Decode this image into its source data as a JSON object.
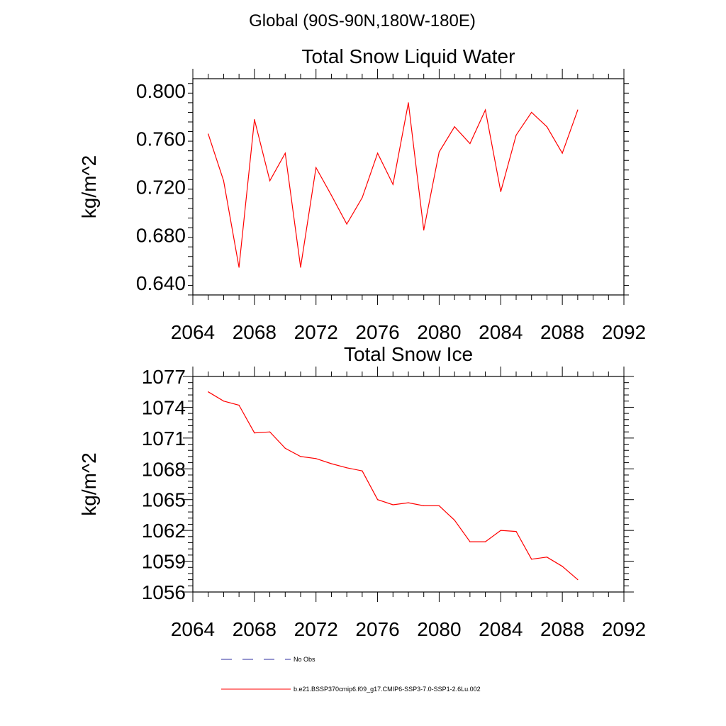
{
  "suptitle": "Global (90S-90N,180W-180E)",
  "colors": {
    "series": "#ff0000",
    "obs": "#2c2ca0",
    "axes": "#000000"
  },
  "chart_data": [
    {
      "type": "line",
      "title": "Total Snow Liquid Water",
      "xlabel": "",
      "ylabel": "kg/m^2",
      "xlim": [
        2064,
        2092
      ],
      "ylim": [
        0.63,
        0.81
      ],
      "xticks": [
        2064,
        2068,
        2072,
        2076,
        2080,
        2084,
        2088,
        2092
      ],
      "xtick_labels": [
        "2064",
        "2068",
        "2072",
        "2076",
        "2080",
        "2084",
        "2088",
        "2092"
      ],
      "yticks": [
        0.64,
        0.68,
        0.72,
        0.76,
        0.8
      ],
      "ytick_labels": [
        "0.640",
        "0.680",
        "0.720",
        "0.760",
        "0.800"
      ],
      "x": [
        2065,
        2066,
        2067,
        2068,
        2069,
        2070,
        2071,
        2072,
        2073,
        2074,
        2075,
        2076,
        2077,
        2078,
        2079,
        2080,
        2081,
        2082,
        2083,
        2084,
        2085,
        2086,
        2087,
        2088,
        2089
      ],
      "series": [
        {
          "name": "b.e21.BSSP370cmip6.f09_g17.CMIP6-SSP3-7.0-SSP1-2.6Lu.002",
          "values": [
            0.764,
            0.725,
            0.653,
            0.776,
            0.725,
            0.748,
            0.653,
            0.736,
            0.713,
            0.689,
            0.711,
            0.748,
            0.722,
            0.79,
            0.684,
            0.749,
            0.77,
            0.756,
            0.784,
            0.716,
            0.763,
            0.782,
            0.77,
            0.748,
            0.784
          ]
        }
      ]
    },
    {
      "type": "line",
      "title": "Total Snow Ice",
      "xlabel": "",
      "ylabel": "kg/m^2",
      "xlim": [
        2064,
        2092
      ],
      "ylim": [
        1056,
        1077
      ],
      "xticks": [
        2064,
        2068,
        2072,
        2076,
        2080,
        2084,
        2088,
        2092
      ],
      "xtick_labels": [
        "2064",
        "2068",
        "2072",
        "2076",
        "2080",
        "2084",
        "2088",
        "2092"
      ],
      "yticks": [
        1056,
        1059,
        1062,
        1065,
        1068,
        1071,
        1074,
        1077
      ],
      "ytick_labels": [
        "1056",
        "1059",
        "1062",
        "1065",
        "1068",
        "1071",
        "1074",
        "1077"
      ],
      "x": [
        2065,
        2066,
        2067,
        2068,
        2069,
        2070,
        2071,
        2072,
        2073,
        2074,
        2075,
        2076,
        2077,
        2078,
        2079,
        2080,
        2081,
        2082,
        2083,
        2084,
        2085,
        2086,
        2087,
        2088,
        2089
      ],
      "series": [
        {
          "name": "b.e21.BSSP370cmip6.f09_g17.CMIP6-SSP3-7.0-SSP1-2.6Lu.002",
          "values": [
            1075.5,
            1074.6,
            1074.2,
            1071.5,
            1071.6,
            1070.0,
            1069.2,
            1069.0,
            1068.5,
            1068.1,
            1067.8,
            1065.0,
            1064.5,
            1064.7,
            1064.4,
            1064.4,
            1063.0,
            1060.9,
            1060.9,
            1062.0,
            1061.9,
            1059.2,
            1059.4,
            1058.5,
            1057.2
          ]
        }
      ]
    }
  ],
  "legend": [
    {
      "label": "No Obs",
      "style": "dashed"
    },
    {
      "label": "b.e21.BSSP370cmip6.f09_g17.CMIP6-SSP3-7.0-SSP1-2.6Lu.002",
      "style": "solid"
    }
  ]
}
